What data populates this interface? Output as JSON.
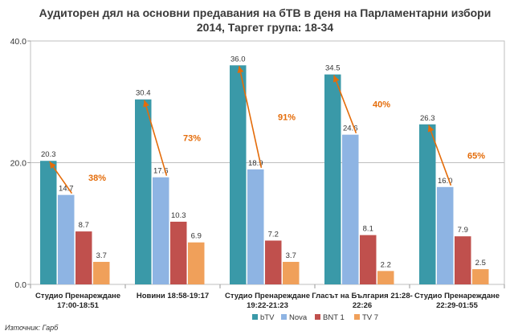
{
  "chart_data": {
    "type": "bar",
    "title_line1": "Аудиторен дял на основни предавания на бТВ в деня на Парламентарни избори",
    "title_line2": "2014, Таргет група: 18-34",
    "categories": [
      [
        "Студио Пренареждане",
        "17:00-18:51"
      ],
      [
        "Новини 18:58-19:17"
      ],
      [
        "Студио Пренареждане",
        "19:22-21:23"
      ],
      [
        "Гласът на България 21:28-",
        "22:26"
      ],
      [
        "Студио Пренареждане",
        "22:29-01:55"
      ]
    ],
    "series": [
      {
        "name": "bTV",
        "color": "#3a99a8",
        "values": [
          20.3,
          30.4,
          36.0,
          34.5,
          26.3
        ]
      },
      {
        "name": "Nova",
        "color": "#8eb4e3",
        "values": [
          14.7,
          17.6,
          18.9,
          24.6,
          16.0
        ]
      },
      {
        "name": "BNT 1",
        "color": "#c0504d",
        "values": [
          8.7,
          10.3,
          7.2,
          8.1,
          7.9
        ]
      },
      {
        "name": "TV 7",
        "color": "#f0a05a",
        "values": [
          3.7,
          6.9,
          3.7,
          2.2,
          2.5
        ]
      }
    ],
    "annotations": [
      "38%",
      "73%",
      "91%",
      "40%",
      "65%"
    ],
    "annotation_color": "#e46c0a",
    "yticks": [
      "0.0",
      "20.0",
      "40.0"
    ],
    "ylim": [
      0,
      40
    ],
    "grid": true,
    "legend_position": "bottom-right"
  },
  "source_text": "Източник: Гарб"
}
